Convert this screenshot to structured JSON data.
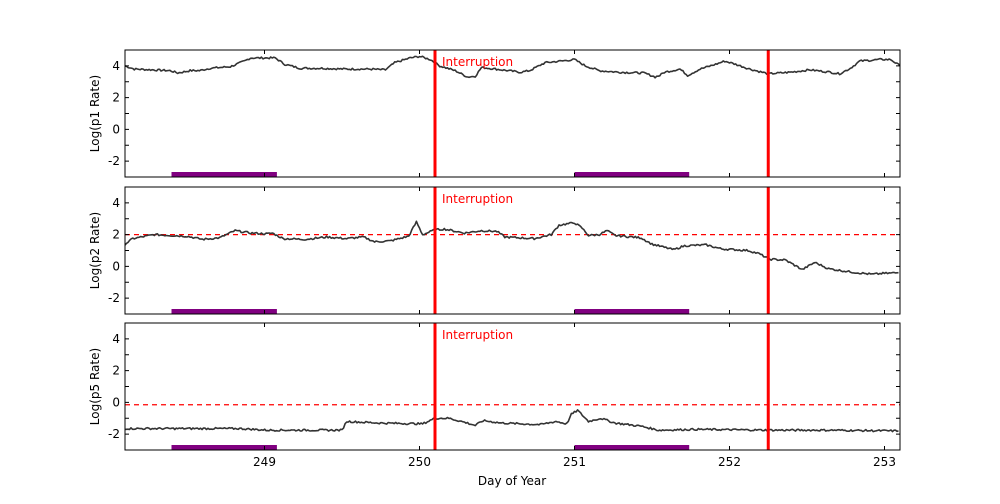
{
  "chart_data": {
    "type": "line",
    "xlabel": "Day of Year",
    "xlim": [
      248.1,
      253.1
    ],
    "xticks": [
      249,
      250,
      251,
      252,
      253
    ],
    "grid": false,
    "series_color": "#333333",
    "interruption_color": "#ff0000",
    "band_color": "#800080",
    "interruptions": [
      250.1,
      252.25
    ],
    "interruption_label": "Interruption",
    "bands": [
      [
        248.4,
        249.08
      ],
      [
        251.0,
        251.74
      ]
    ],
    "panels": [
      {
        "ylabel": "Log(p1 Rate)",
        "ylim": [
          -3,
          5
        ],
        "yticks": [
          -2,
          0,
          2,
          4
        ],
        "threshold": null,
        "x": [
          248.1,
          248.16,
          248.39,
          248.44,
          248.52,
          248.58,
          248.65,
          248.78,
          248.87,
          248.91,
          249.0,
          249.07,
          249.13,
          249.23,
          249.36,
          249.52,
          249.68,
          249.78,
          249.84,
          249.94,
          250.0,
          250.07,
          250.13,
          250.23,
          250.31,
          250.36,
          250.4,
          250.45,
          250.65,
          250.71,
          250.81,
          250.91,
          251.0,
          251.07,
          251.16,
          251.29,
          251.45,
          251.52,
          251.55,
          251.58,
          251.68,
          251.73,
          251.81,
          251.91,
          251.97,
          252.04,
          252.13,
          252.25,
          252.39,
          252.52,
          252.65,
          252.71,
          252.78,
          252.84,
          252.97,
          253.04,
          253.1
        ],
        "y": [
          4.0,
          3.8,
          3.7,
          3.55,
          3.7,
          3.7,
          3.85,
          3.95,
          4.3,
          4.5,
          4.5,
          4.5,
          4.1,
          3.85,
          3.85,
          3.8,
          3.8,
          3.75,
          4.2,
          4.5,
          4.6,
          4.4,
          4.0,
          3.7,
          3.3,
          3.35,
          3.9,
          3.85,
          3.6,
          3.7,
          4.2,
          4.3,
          4.4,
          4.0,
          3.7,
          3.6,
          3.55,
          3.3,
          3.4,
          3.6,
          3.8,
          3.4,
          3.8,
          4.1,
          4.3,
          4.1,
          3.8,
          3.5,
          3.6,
          3.75,
          3.6,
          3.5,
          3.85,
          4.3,
          4.4,
          4.4,
          4.0
        ]
      },
      {
        "ylabel": "Log(p2 Rate)",
        "ylim": [
          -3,
          5
        ],
        "yticks": [
          -2,
          0,
          2,
          4
        ],
        "threshold": 2.0,
        "x": [
          248.1,
          248.15,
          248.29,
          248.5,
          248.6,
          248.71,
          248.81,
          248.91,
          249.02,
          249.05,
          249.12,
          249.26,
          249.4,
          249.53,
          249.64,
          249.71,
          249.81,
          249.93,
          249.98,
          250.02,
          250.1,
          250.16,
          250.29,
          250.4,
          250.5,
          250.55,
          250.74,
          250.85,
          250.9,
          251.0,
          251.05,
          251.09,
          251.16,
          251.21,
          251.26,
          251.43,
          251.5,
          251.64,
          251.71,
          251.85,
          251.95,
          252.12,
          252.19,
          252.26,
          252.36,
          252.47,
          252.55,
          252.64,
          252.78,
          252.92,
          252.98,
          253.09
        ],
        "y": [
          1.4,
          1.75,
          2.0,
          1.9,
          1.7,
          1.8,
          2.25,
          2.1,
          2.05,
          2.1,
          1.75,
          1.7,
          1.85,
          1.75,
          1.85,
          1.55,
          1.6,
          1.9,
          2.8,
          2.0,
          2.3,
          2.35,
          2.1,
          2.25,
          2.2,
          1.85,
          1.75,
          2.0,
          2.6,
          2.75,
          2.4,
          1.95,
          2.0,
          2.25,
          1.95,
          1.8,
          1.4,
          1.05,
          1.3,
          1.35,
          1.1,
          1.0,
          0.8,
          0.45,
          0.4,
          -0.2,
          0.25,
          -0.15,
          -0.35,
          -0.5,
          -0.45,
          -0.4
        ]
      },
      {
        "ylabel": "Log(p5 Rate)",
        "ylim": [
          -3,
          5
        ],
        "yticks": [
          -2,
          0,
          2,
          4
        ],
        "threshold": -0.15,
        "x": [
          248.1,
          248.84,
          249.02,
          249.5,
          249.53,
          249.74,
          250.02,
          250.1,
          250.19,
          250.29,
          250.36,
          250.41,
          250.53,
          250.78,
          250.88,
          250.95,
          250.98,
          251.02,
          251.05,
          251.09,
          251.17,
          251.26,
          251.43,
          251.54,
          251.78,
          252.29,
          252.64,
          253.09
        ],
        "y": [
          -1.65,
          -1.65,
          -1.75,
          -1.75,
          -1.2,
          -1.3,
          -1.35,
          -1.0,
          -1.0,
          -1.25,
          -1.45,
          -1.15,
          -1.3,
          -1.4,
          -1.2,
          -1.35,
          -0.75,
          -0.5,
          -0.8,
          -1.2,
          -1.0,
          -1.3,
          -1.5,
          -1.75,
          -1.7,
          -1.75,
          -1.75,
          -1.8
        ]
      }
    ]
  }
}
